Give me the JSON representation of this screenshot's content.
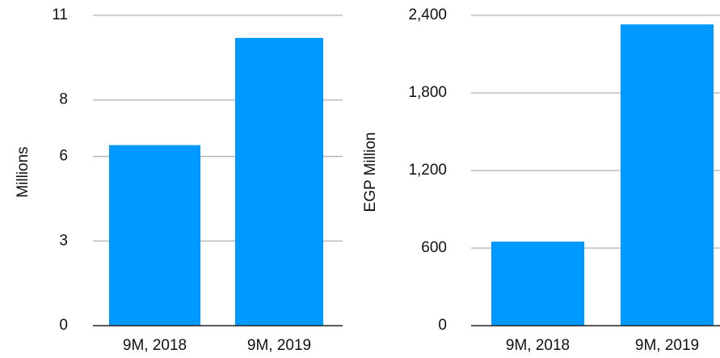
{
  "chart_data": [
    {
      "type": "bar",
      "title": "",
      "xlabel": "",
      "ylabel": "Millions",
      "categories": [
        "9M, 2018",
        "9M, 2019"
      ],
      "series": [
        {
          "values": [
            6.4,
            10.2
          ],
          "color": "#0099FF"
        }
      ],
      "ylim": [
        0,
        11
      ],
      "yticks": [
        0,
        3,
        6,
        8,
        11
      ],
      "ytick_labels": [
        "0",
        "3",
        "6",
        "8",
        "11"
      ],
      "grid": true,
      "legend": "none"
    },
    {
      "type": "bar",
      "title": "",
      "xlabel": "",
      "ylabel": "EGP Million",
      "categories": [
        "9M, 2018",
        "9M, 2019"
      ],
      "series": [
        {
          "values": [
            650,
            2330
          ],
          "color": "#0099FF"
        }
      ],
      "ylim": [
        0,
        2400
      ],
      "yticks": [
        0,
        600,
        1200,
        1800,
        2400
      ],
      "ytick_labels": [
        "0",
        "600",
        "1,200",
        "1,800",
        "2,400"
      ],
      "grid": true,
      "legend": "none"
    }
  ]
}
